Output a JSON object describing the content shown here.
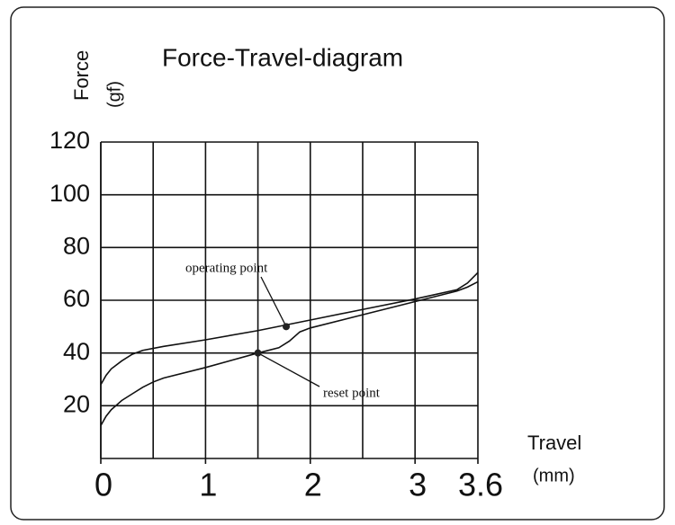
{
  "chart_data": {
    "type": "line",
    "title": "Force-Travel-diagram",
    "ylabel": "Force",
    "yunit": "(gf)",
    "xlabel": "Travel",
    "xunit": "(mm)",
    "xlim": [
      0,
      3.6
    ],
    "ylim": [
      0,
      120
    ],
    "xticks": [
      0,
      1,
      2,
      3,
      3.6
    ],
    "yticks": [
      20,
      40,
      60,
      80,
      100,
      120
    ],
    "xgrid": [
      0,
      0.5,
      1,
      1.5,
      2,
      2.5,
      3,
      3.6
    ],
    "grid": true,
    "series": [
      {
        "color": "#111111",
        "x": [
          0,
          0.05,
          0.1,
          0.2,
          0.3,
          0.4,
          0.6,
          1,
          1.5,
          2,
          2.5,
          3,
          3.4,
          3.5,
          3.6
        ],
        "values": [
          28,
          31.5,
          34,
          37,
          39.5,
          41,
          42.5,
          45,
          48.5,
          52.5,
          56.5,
          60.5,
          64,
          66.5,
          70.5
        ]
      },
      {
        "color": "#111111",
        "x": [
          0,
          0.05,
          0.1,
          0.2,
          0.3,
          0.4,
          0.5,
          0.6,
          1,
          1.5,
          1.7,
          1.8,
          1.9,
          2,
          2.5,
          3,
          3.4,
          3.5,
          3.6
        ],
        "values": [
          12.5,
          16,
          18.5,
          22,
          24.5,
          27,
          29,
          30.5,
          34.5,
          40,
          42,
          44.5,
          48,
          49.5,
          54.5,
          59.5,
          63.5,
          65,
          67
        ]
      }
    ],
    "annotations": [
      {
        "text": "operating point",
        "x": 1.77,
        "y": 50
      },
      {
        "text": "reset point",
        "x": 1.5,
        "y": 40
      }
    ]
  }
}
